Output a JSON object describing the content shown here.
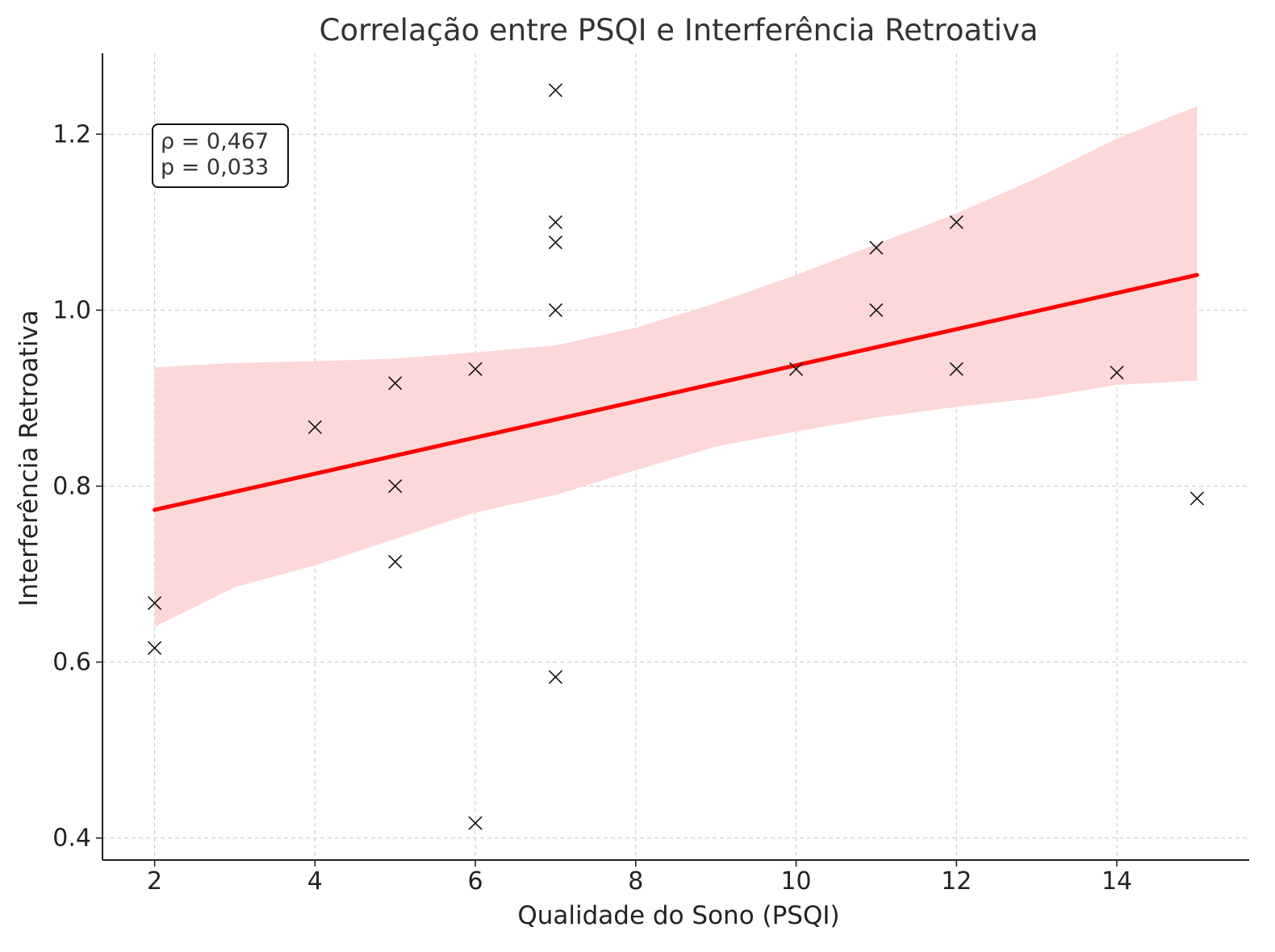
{
  "chart_data": {
    "type": "scatter",
    "title": "Correlação entre PSQI e Interferência Retroativa",
    "xlabel": "Qualidade do Sono (PSQI)",
    "ylabel": "Interferência Retroativa",
    "xlim": [
      1.35,
      15.65
    ],
    "ylim": [
      0.375,
      1.292
    ],
    "xticks": [
      2,
      4,
      6,
      8,
      10,
      12,
      14
    ],
    "yticks": [
      0.4,
      0.6,
      0.8,
      1.0,
      1.2
    ],
    "xtick_labels": [
      "2",
      "4",
      "6",
      "8",
      "10",
      "12",
      "14"
    ],
    "ytick_labels": [
      "0.4",
      "0.6",
      "0.8",
      "1.0",
      "1.2"
    ],
    "grid": true,
    "marker": "x",
    "series": [
      {
        "points": [
          [
            2,
            0.667
          ],
          [
            2,
            0.616
          ],
          [
            4,
            0.867
          ],
          [
            5,
            0.917
          ],
          [
            5,
            0.8
          ],
          [
            5,
            0.714
          ],
          [
            6,
            0.933
          ],
          [
            6,
            0.417
          ],
          [
            7,
            1.25
          ],
          [
            7,
            1.1
          ],
          [
            7,
            1.077
          ],
          [
            7,
            1.0
          ],
          [
            7,
            0.583
          ],
          [
            10,
            0.933
          ],
          [
            11,
            1.071
          ],
          [
            11,
            1.0
          ],
          [
            12,
            1.1
          ],
          [
            12,
            0.933
          ],
          [
            14,
            0.929
          ],
          [
            15,
            0.786
          ]
        ]
      }
    ],
    "regression": {
      "color": "#ff0000",
      "x": [
        2,
        15
      ],
      "y": [
        0.773,
        1.04
      ],
      "ci_color": "#fdd8d8",
      "ci_x": [
        2,
        3,
        4,
        5,
        6,
        7,
        8,
        9,
        10,
        11,
        12,
        13,
        14,
        15
      ],
      "ci_upper": [
        0.935,
        0.94,
        0.942,
        0.945,
        0.952,
        0.96,
        0.98,
        1.008,
        1.04,
        1.075,
        1.11,
        1.15,
        1.195,
        1.232
      ],
      "ci_lower": [
        0.64,
        0.685,
        0.71,
        0.74,
        0.77,
        0.79,
        0.818,
        0.845,
        0.862,
        0.878,
        0.89,
        0.9,
        0.915,
        0.92
      ]
    },
    "annotation": {
      "lines": [
        "ρ = 0,467",
        "p = 0,033"
      ],
      "position": "top-left"
    }
  }
}
